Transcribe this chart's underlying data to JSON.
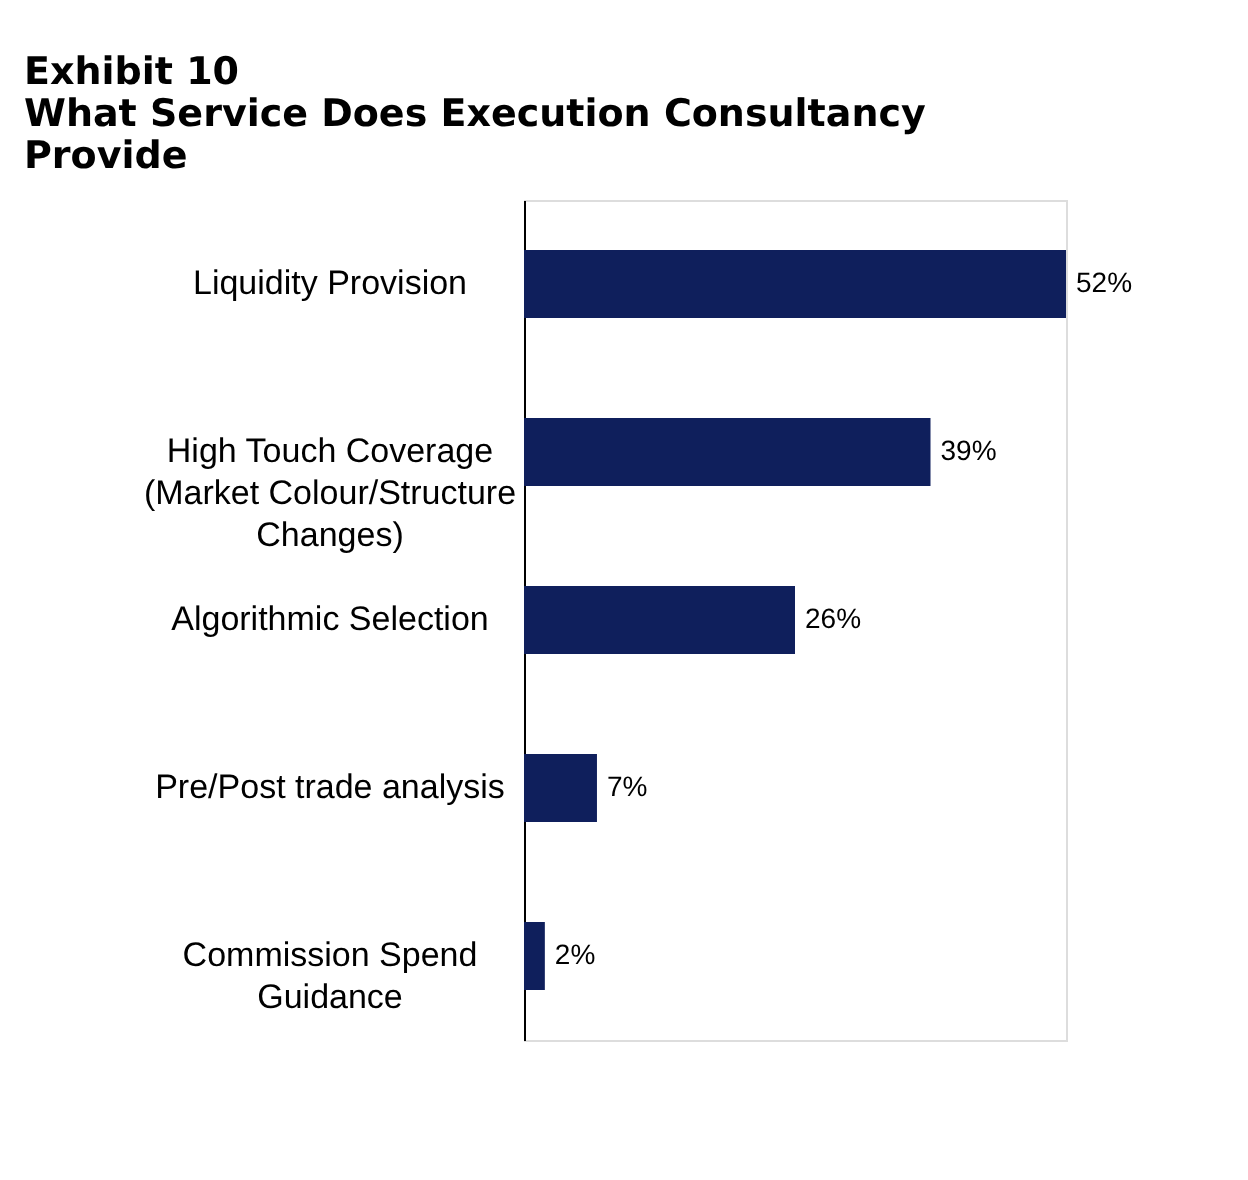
{
  "chart_data": {
    "type": "bar",
    "orientation": "horizontal",
    "title": "Exhibit 10",
    "subtitle": "What Service Does Execution Consultancy Provide",
    "categories": [
      "Liquidity Provision",
      "High Touch Coverage (Market Colour/Structure Changes)",
      "Algorithmic Selection",
      "Pre/Post trade analysis",
      "Commission Spend Guidance"
    ],
    "values": [
      52,
      39,
      26,
      7,
      2
    ],
    "value_labels": [
      "52%",
      "39%",
      "26%",
      "7%",
      "2%"
    ],
    "color": "#0f1f5c"
  }
}
